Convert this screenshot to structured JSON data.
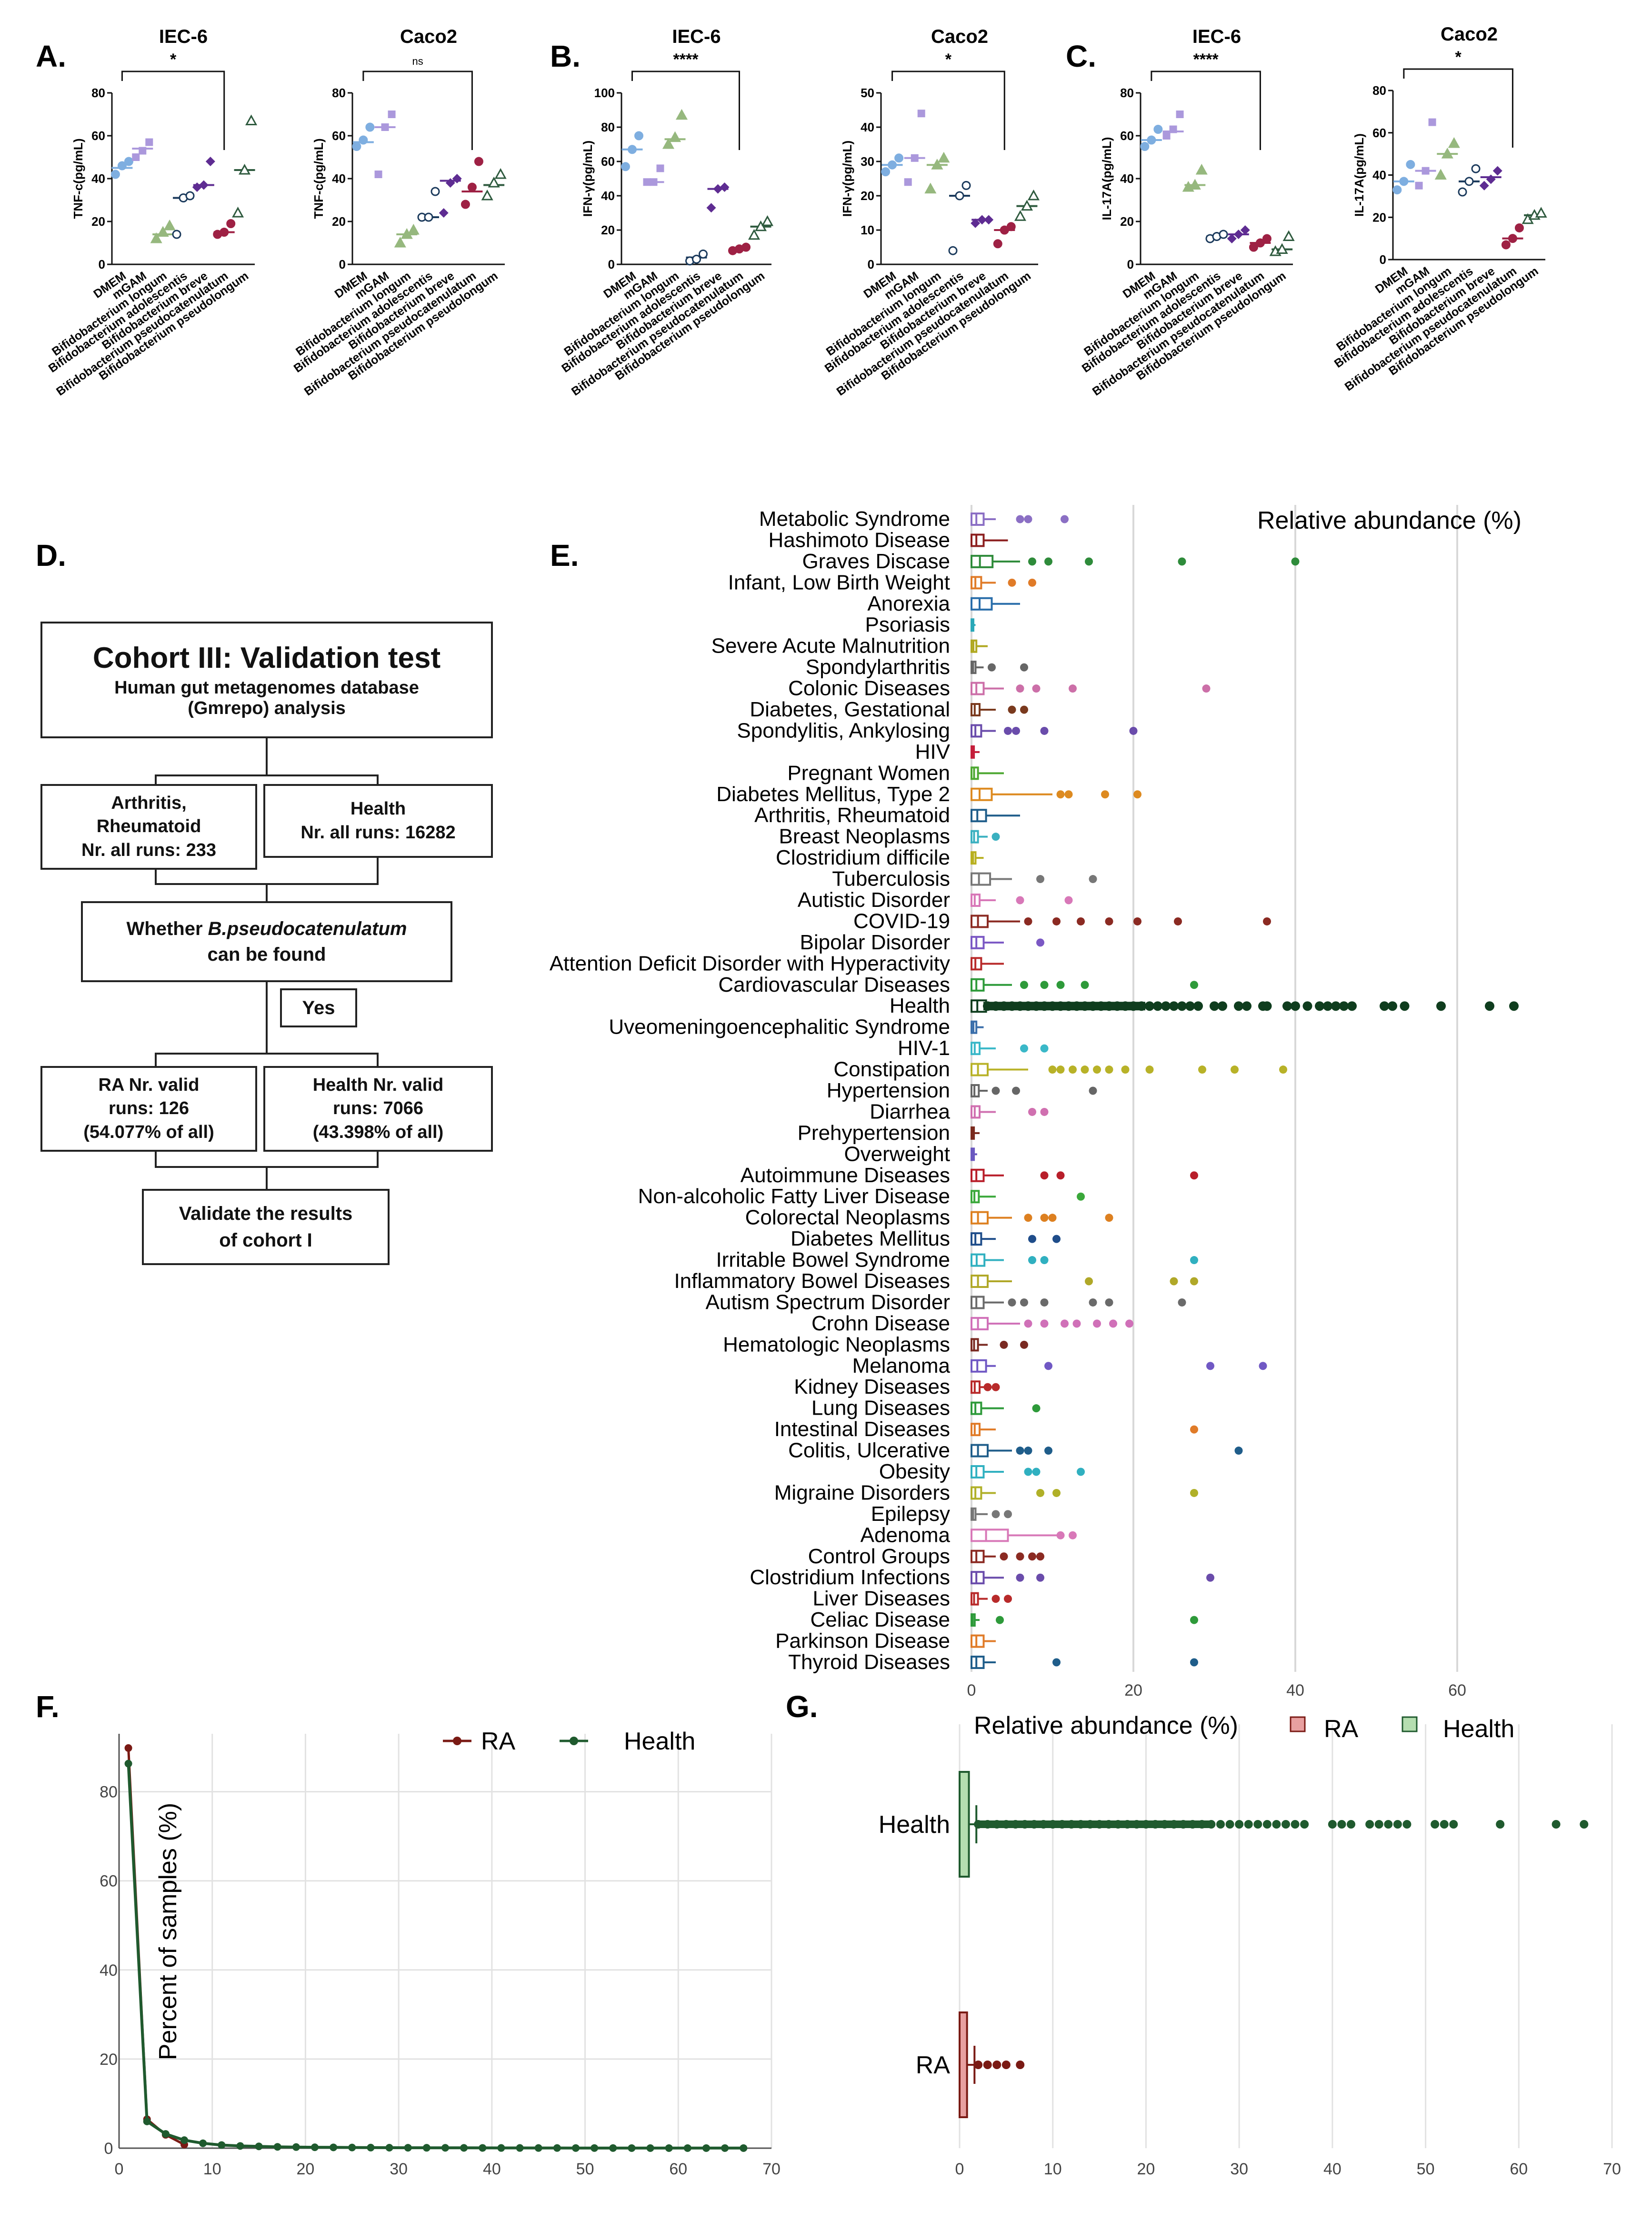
{
  "panel_labels": {
    "A": "A.",
    "B": "B.",
    "C": "C.",
    "D": "D.",
    "E": "E.",
    "F": "F.",
    "G": "G."
  },
  "colors": {
    "DMEM": "#7eaee0",
    "mGAM": "#ab98dc",
    "longum": "#96b87e",
    "adolescentis": "#1b3a5c",
    "breve": "#5e2c92",
    "pseudocatenulatum": "#9e2144",
    "pseudolongum": "#2e5a3e",
    "RA": "#7a1a14",
    "Health": "#1f5a2e",
    "RA_fill": "#e8a0a0",
    "Health_fill": "#b5deb0"
  },
  "chart_data": [
    {
      "panel": "A",
      "title": "IEC-6",
      "significance": "*",
      "type": "scatter",
      "ylabel": "TNF-c(pg/mL)",
      "ylim": [
        0,
        80
      ],
      "yticks": [
        0,
        20,
        40,
        60,
        80
      ],
      "categories": [
        "DMEM",
        "mGAM",
        "Bifidobacterium longum",
        "Bifidobacterium adolescentis",
        "Bifidobacterium breve",
        "Bifidobacterium pseudocatenulatum",
        "Bifidobacterium pseudolongum"
      ],
      "points": [
        [
          42,
          46,
          48
        ],
        [
          50,
          53,
          57
        ],
        [
          12,
          15,
          18
        ],
        [
          14,
          31,
          32
        ],
        [
          36,
          37,
          48
        ],
        [
          14,
          15,
          19
        ],
        [
          24,
          44,
          67
        ]
      ],
      "means": [
        45,
        54,
        14,
        31,
        37,
        15,
        44
      ]
    },
    {
      "panel": "A",
      "title": "Caco2",
      "significance": "ns",
      "type": "scatter",
      "ylabel": "TNF-c(pg/mL)",
      "ylim": [
        0,
        80
      ],
      "yticks": [
        0,
        20,
        40,
        60,
        80
      ],
      "categories": [
        "DMEM",
        "mGAM",
        "Bifidobacterium longum",
        "Bifidobacterium adolescentis",
        "Bifidobacterium breve",
        "Bifidobacterium pseudocatenulatum",
        "Bifidobacterium pseudolongum"
      ],
      "points": [
        [
          55,
          58,
          64
        ],
        [
          42,
          64,
          70
        ],
        [
          10,
          14,
          16
        ],
        [
          22,
          22,
          34
        ],
        [
          24,
          38,
          40
        ],
        [
          28,
          36,
          48
        ],
        [
          32,
          38,
          42
        ]
      ],
      "means": [
        57,
        64,
        14,
        22,
        39,
        34,
        37
      ]
    },
    {
      "panel": "B",
      "title": "IEC-6",
      "significance": "****",
      "type": "scatter",
      "ylabel": "IFN-γ(pg/mL)",
      "ylim": [
        0,
        100
      ],
      "yticks": [
        0,
        20,
        40,
        60,
        80,
        100
      ],
      "categories": [
        "DMEM",
        "mGAM",
        "Bifidobacterium longum",
        "Bifidobacterium adolescentis",
        "Bifidobacterium breve",
        "Bifidobacterium pseudocatenulatum",
        "Bifidobacterium pseudolongum"
      ],
      "points": [
        [
          57,
          67,
          75
        ],
        [
          48,
          48,
          56
        ],
        [
          70,
          74,
          87
        ],
        [
          2,
          3,
          6
        ],
        [
          33,
          44,
          45
        ],
        [
          8,
          9,
          10
        ],
        [
          17,
          22,
          25
        ]
      ],
      "means": [
        67,
        48,
        73,
        4,
        44,
        9,
        22
      ]
    },
    {
      "panel": "B",
      "title": "Caco2",
      "significance": "*",
      "type": "scatter",
      "ylabel": "IFN-γ(pg/mL)",
      "ylim": [
        0,
        50
      ],
      "yticks": [
        0,
        10,
        20,
        30,
        40,
        50
      ],
      "categories": [
        "DMEM",
        "mGAM",
        "Bifidobacterium longum",
        "Bifidobacterium adolescentis",
        "Bifidobacterium breve",
        "Bifidobacterium pseudocatenulatum",
        "Bifidobacterium pseudolongum"
      ],
      "points": [
        [
          27,
          29,
          31
        ],
        [
          24,
          31,
          44
        ],
        [
          22,
          29,
          31
        ],
        [
          4,
          20,
          23
        ],
        [
          12,
          13,
          13
        ],
        [
          6,
          10,
          11
        ],
        [
          14,
          17,
          20
        ]
      ],
      "means": [
        29,
        31,
        29,
        20,
        13,
        10,
        17
      ]
    },
    {
      "panel": "C",
      "title": "IEC-6",
      "significance": "****",
      "type": "scatter",
      "ylabel": "IL-17A(pg/mL)",
      "ylim": [
        0,
        80
      ],
      "yticks": [
        0,
        20,
        40,
        60,
        80
      ],
      "categories": [
        "DMEM",
        "mGAM",
        "Bifidobacterium longum",
        "Bifidobacterium adolescentis",
        "Bifidobacterium breve",
        "Bifidobacterium pseudocatenulatum",
        "Bifidobacterium pseudolongum"
      ],
      "points": [
        [
          55,
          58,
          63
        ],
        [
          60,
          63,
          70
        ],
        [
          36,
          37,
          44
        ],
        [
          12,
          13,
          14
        ],
        [
          12,
          14,
          16
        ],
        [
          8,
          10,
          12
        ],
        [
          6,
          7,
          13
        ]
      ],
      "means": [
        58,
        62,
        37,
        13,
        14,
        10,
        7
      ]
    },
    {
      "panel": "C",
      "title": "Caco2",
      "significance": "*",
      "type": "scatter",
      "ylabel": "IL-17A(pg/mL)",
      "ylim": [
        0,
        80
      ],
      "yticks": [
        0,
        20,
        40,
        60,
        80
      ],
      "categories": [
        "DMEM",
        "mGAM",
        "Bifidobacterium longum",
        "Bifidobacterium adolescentis",
        "Bifidobacterium breve",
        "Bifidobacterium pseudocatenulatum",
        "Bifidobacterium pseudolongum"
      ],
      "points": [
        [
          33,
          37,
          45
        ],
        [
          35,
          42,
          65
        ],
        [
          40,
          50,
          55
        ],
        [
          32,
          37,
          43
        ],
        [
          35,
          38,
          42
        ],
        [
          7,
          10,
          15
        ],
        [
          19,
          21,
          22
        ]
      ],
      "means": [
        37,
        42,
        50,
        37,
        39,
        10,
        21
      ]
    },
    {
      "panel": "E",
      "type": "box",
      "title": "Relative abundance (%)",
      "xlim": [
        0,
        67
      ],
      "xticks": [
        0,
        20,
        40,
        60
      ],
      "categories": [
        "Metabolic Syndrome",
        "Hashimoto Disease",
        "Graves Discase",
        "Infant, Low Birth Weight",
        "Anorexia",
        "Psoriasis",
        "Severe Acute Malnutrition",
        "Spondylarthritis",
        "Colonic Diseases",
        "Diabetes, Gestational",
        "Spondylitis, Ankylosing",
        "HIV",
        "Pregnant Women",
        "Diabetes Mellitus, Type 2",
        "Arthritis, Rheumatoid",
        "Breast Neoplasms",
        "Clostridium difficile",
        "Tuberculosis",
        "Autistic Disorder",
        "COVID-19",
        "Bipolar Disorder",
        "Attention Deficit Disorder with Hyperactivity",
        "Cardiovascular Diseases",
        "Health",
        "Uveomeningoencephalitic Syndrome",
        "HIV-1",
        "Constipation",
        "Hypertension",
        "Diarrhea",
        "Prehypertension",
        "Overweight",
        "Autoimmune Diseases",
        "Non-alcoholic Fatty Liver Disease",
        "Colorectal Neoplasms",
        "Diabetes Mellitus",
        "Irritable Bowel Syndrome",
        "Inflammatory Bowel Diseases",
        "Autism Spectrum Disorder",
        "Crohn Disease",
        "Hematologic Neoplasms",
        "Melanoma",
        "Kidney Diseases",
        "Lung Diseases",
        "Intestinal Diseases",
        "Colitis, Ulcerative",
        "Obesity",
        "Migraine Disorders",
        "Epilepsy",
        "Adenoma",
        "Control Groups",
        "Clostridium Infections",
        "Liver Diseases",
        "Celiac Disease",
        "Parkinson Disease",
        "Thyroid Diseases"
      ],
      "box_q3": [
        1.5,
        1.5,
        2.6,
        1.2,
        2.5,
        0.2,
        0.6,
        0.5,
        1.5,
        1.0,
        1.2,
        0.3,
        0.8,
        2.5,
        1.8,
        0.8,
        0.5,
        2.3,
        1.0,
        2.0,
        1.5,
        1.2,
        1.5,
        1.8,
        0.6,
        1.0,
        2.0,
        0.9,
        1.0,
        0.3,
        0.3,
        1.5,
        0.9,
        2.0,
        1.2,
        1.6,
        2.0,
        1.5,
        2.0,
        0.8,
        1.8,
        1.0,
        1.2,
        1.0,
        2.0,
        1.5,
        1.2,
        0.5,
        4.5,
        1.5,
        1.5,
        0.8,
        0.4,
        1.5,
        1.5
      ],
      "whisker": [
        3,
        4.5,
        6,
        3,
        6,
        0.5,
        2,
        1.5,
        4,
        3,
        3,
        1,
        4,
        10,
        6,
        2,
        1.5,
        5,
        3,
        6,
        4,
        4,
        5,
        1.8,
        1.5,
        3,
        7,
        2,
        3,
        1,
        0.7,
        4,
        3,
        5,
        3,
        4,
        5,
        4,
        6,
        2,
        3,
        2.5,
        4,
        3,
        5,
        4,
        3,
        2,
        11.5,
        3,
        4,
        2,
        1,
        3,
        3
      ],
      "outliers": [
        [
          6,
          7,
          11.5
        ],
        [],
        [
          7.5,
          9.5,
          14.5,
          26,
          40
        ],
        [
          5,
          7.5
        ],
        [],
        [],
        [],
        [
          2.5,
          6.5
        ],
        [
          6,
          8,
          12.5,
          29
        ],
        [
          5,
          6.5
        ],
        [
          4.5,
          5.5,
          9,
          20
        ],
        [],
        [],
        [
          11,
          12,
          16.5,
          20.5
        ],
        [],
        [
          3
        ],
        [],
        [
          8.5,
          15
        ],
        [
          6,
          12
        ],
        [
          7,
          10.5,
          13.5,
          17,
          20.5,
          25.5,
          36.5
        ],
        [
          8.5
        ],
        [],
        [
          6.5,
          9,
          11,
          14,
          27.5
        ],
        [
          2,
          3,
          4,
          5,
          6,
          7,
          8,
          9,
          10,
          11,
          12,
          13,
          14,
          15,
          16,
          17,
          18,
          19,
          20,
          21,
          22,
          23,
          24,
          25,
          26,
          27,
          28,
          30,
          31,
          33,
          34,
          36,
          36.5,
          39,
          40,
          41.5,
          43,
          44,
          45,
          46,
          47,
          51,
          52,
          53.5,
          58,
          64,
          67
        ],
        [],
        [
          6.5,
          9
        ],
        [
          10,
          11,
          12.5,
          14,
          15.5,
          17,
          19,
          22,
          28.5,
          32.5,
          38.5
        ],
        [
          3,
          5.5,
          15
        ],
        [
          7.5,
          9
        ],
        [],
        [],
        [
          9,
          11,
          27.5
        ],
        [
          13.5
        ],
        [
          7,
          9,
          10,
          17
        ],
        [
          7.5,
          10.5
        ],
        [
          7.5,
          9,
          27.5
        ],
        [
          14.5,
          25,
          27.5
        ],
        [
          5,
          6.5,
          9,
          15,
          17,
          26
        ],
        [
          7,
          9,
          11.5,
          13,
          15.5,
          17.5,
          19.5
        ],
        [
          4,
          6.5
        ],
        [
          9.5,
          29.5,
          36
        ],
        [
          2,
          3
        ],
        [
          8
        ],
        [
          27.5
        ],
        [
          6,
          7,
          9.5,
          33
        ],
        [
          7,
          8,
          13.5
        ],
        [
          8.5,
          10.5,
          27.5
        ],
        [
          3,
          4.5
        ],
        [
          11,
          12.5
        ],
        [
          4,
          6,
          7.5,
          8.5
        ],
        [
          6,
          8.5,
          29.5
        ],
        [
          3,
          4.5
        ],
        [
          3.5,
          27.5
        ],
        [],
        [
          10.5,
          27.5
        ]
      ]
    },
    {
      "panel": "F",
      "type": "line",
      "ylabel": "Percent of samples (%)",
      "xlim": [
        0,
        70
      ],
      "ylim": [
        0,
        93
      ],
      "xticks": [
        0,
        10,
        20,
        30,
        40,
        50,
        60,
        70
      ],
      "yticks": [
        0,
        20,
        40,
        60,
        80
      ],
      "series": [
        {
          "name": "RA",
          "x": [
            1,
            3,
            5,
            7
          ],
          "y": [
            89.8,
            6.5,
            3.0,
            0.8
          ]
        },
        {
          "name": "Health",
          "x": [
            1,
            3,
            5,
            7,
            9,
            11,
            13,
            15,
            17,
            19,
            21,
            23,
            25,
            27,
            29,
            31,
            33,
            35,
            37,
            39,
            41,
            43,
            45,
            47,
            49,
            51,
            53,
            55,
            57,
            59,
            61,
            63,
            65,
            67
          ],
          "y": [
            86.3,
            6.0,
            3.2,
            1.8,
            1.1,
            0.7,
            0.5,
            0.4,
            0.3,
            0.25,
            0.2,
            0.18,
            0.15,
            0.13,
            0.11,
            0.1,
            0.09,
            0.08,
            0.07,
            0.06,
            0.05,
            0.05,
            0.04,
            0.04,
            0.03,
            0.03,
            0.03,
            0.02,
            0.02,
            0.02,
            0.02,
            0.02,
            0.02,
            0.02
          ]
        }
      ]
    },
    {
      "panel": "G",
      "type": "box",
      "title": "Relative abundance (%)",
      "xlim": [
        0,
        70
      ],
      "xticks": [
        0,
        10,
        20,
        30,
        40,
        50,
        60,
        70
      ],
      "categories": [
        "Health",
        "RA"
      ],
      "boxes": [
        {
          "name": "Health",
          "q1": 0,
          "median": 0.3,
          "q3": 1.0,
          "whisker": 1.8,
          "outliers": [
            2,
            3,
            4,
            5,
            6,
            7,
            8,
            9,
            10,
            11,
            12,
            13,
            14,
            15,
            16,
            17,
            18,
            19,
            20,
            21,
            22,
            23,
            24,
            25,
            26,
            27,
            28,
            29,
            30,
            31,
            32,
            33,
            34,
            35,
            36,
            37,
            40,
            41,
            42,
            44,
            45,
            46,
            47,
            48,
            51,
            52,
            53,
            58,
            64,
            67
          ]
        },
        {
          "name": "RA",
          "q1": 0,
          "median": 0.2,
          "q3": 0.8,
          "whisker": 1.6,
          "outliers": [
            2,
            3,
            4,
            5,
            6.5
          ]
        }
      ]
    }
  ],
  "legend": {
    "RA": "RA",
    "Health": "Health"
  },
  "flowchart": {
    "title": "Cohort III:  Validation test",
    "subtitle1": "Human gut metagenomes database",
    "subtitle2": "(Gmrepo) analysis",
    "ra_line1": "Arthritis,",
    "ra_line2": "Rheumatoid",
    "ra_line3": "Nr. all runs: 233",
    "health_line1": "Health",
    "health_line2": "Nr. all runs: 16282",
    "q_prefix": "Whether ",
    "q_species": "B.pseudocatenulatum",
    "q_line2": "can be found",
    "yes": "Yes",
    "ra_valid_1": "RA Nr. valid",
    "ra_valid_2": "runs:  126",
    "ra_valid_3": "(54.077% of all)",
    "h_valid_1": "Health Nr. valid",
    "h_valid_2": "runs:  7066",
    "h_valid_3": "(43.398% of all)",
    "validate_1": "Validate the results",
    "validate_2": "of cohort I"
  }
}
